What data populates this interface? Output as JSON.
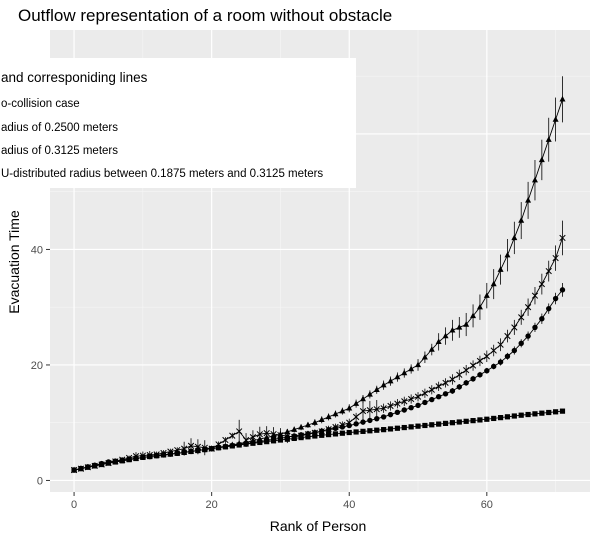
{
  "chart_data": {
    "type": "line",
    "title": "Outflow representation of a room without obstacle",
    "xlabel": "Rank of Person",
    "ylabel": "Evacuation Time",
    "xlim": [
      -3.5,
      75
    ],
    "ylim": [
      -2,
      78
    ],
    "xticks": [
      0,
      20,
      40,
      60
    ],
    "yticks": [
      0,
      20,
      40
    ],
    "grid": true,
    "legend": {
      "placement": "top-left",
      "title": "and corresponiding lines",
      "entries": [
        "o-collision case",
        "adius of 0.2500 meters",
        "adius of 0.3125 meters",
        "U-distributed radius between 0.1875 meters and 0.3125 meters"
      ]
    },
    "series": [
      {
        "marker": "square",
        "x": [
          0,
          5,
          10,
          15,
          20,
          25,
          30,
          35,
          40,
          45,
          50,
          55,
          60,
          65,
          71
        ],
        "y": [
          1.8,
          3.0,
          4.0,
          4.7,
          5.5,
          6.3,
          7.0,
          7.7,
          8.3,
          8.8,
          9.4,
          10.0,
          10.6,
          11.3,
          12.0
        ],
        "err": [
          0.3,
          0.2,
          0.2,
          0.2,
          0.2,
          0.2,
          0.2,
          0.2,
          0.2,
          0.2,
          0.2,
          0.2,
          0.2,
          0.2,
          0.3
        ]
      },
      {
        "marker": "circle",
        "x": [
          0,
          5,
          10,
          15,
          20,
          25,
          30,
          35,
          40,
          45,
          50,
          55,
          60,
          62,
          64,
          66,
          68,
          70,
          71
        ],
        "y": [
          1.8,
          3.2,
          4.0,
          4.7,
          5.5,
          6.4,
          7.3,
          8.3,
          9.5,
          11.0,
          13.0,
          15.5,
          19.0,
          20.5,
          22.5,
          25.0,
          28.0,
          31.5,
          33.0
        ],
        "err": [
          0.3,
          0.3,
          0.3,
          0.3,
          0.3,
          0.3,
          0.3,
          0.3,
          0.4,
          0.4,
          0.4,
          0.5,
          0.5,
          0.6,
          0.7,
          0.8,
          0.9,
          1.0,
          1.2
        ]
      },
      {
        "marker": "cross",
        "x": [
          0,
          5,
          9,
          12,
          16,
          17,
          20,
          24,
          25,
          27,
          28,
          32,
          36,
          40,
          42,
          45,
          50,
          55,
          60,
          62,
          64,
          66,
          68,
          70,
          71
        ],
        "y": [
          1.8,
          3.0,
          4.2,
          4.5,
          5.5,
          6.0,
          5.5,
          8.5,
          7.0,
          8.0,
          8.2,
          7.5,
          8.5,
          10.0,
          12.0,
          12.5,
          14.5,
          17.5,
          21.5,
          23.5,
          26.5,
          30.0,
          34.0,
          38.5,
          42.0
        ],
        "err": [
          0.3,
          0.4,
          0.7,
          0.5,
          1.2,
          1.3,
          0.5,
          2.0,
          1.2,
          1.3,
          1.2,
          0.6,
          0.6,
          0.7,
          1.6,
          0.8,
          0.8,
          0.9,
          1.0,
          1.1,
          1.3,
          1.5,
          1.8,
          2.2,
          3.0
        ]
      },
      {
        "marker": "triangle",
        "x": [
          0,
          5,
          10,
          15,
          20,
          25,
          30,
          35,
          40,
          45,
          50,
          53,
          55,
          57,
          59,
          61,
          63,
          65,
          67,
          69,
          71
        ],
        "y": [
          1.8,
          3.0,
          4.0,
          4.7,
          5.5,
          6.6,
          8.0,
          10.0,
          12.5,
          16.5,
          20.0,
          24.0,
          26.0,
          27.0,
          30.0,
          34.0,
          39.0,
          45.0,
          52.0,
          59.0,
          66.0
        ],
        "err": [
          0.3,
          0.3,
          0.3,
          0.3,
          0.3,
          0.4,
          0.5,
          0.6,
          0.7,
          0.8,
          1.0,
          1.5,
          1.8,
          2.0,
          2.2,
          2.6,
          2.8,
          3.2,
          3.5,
          3.8,
          4.0
        ]
      }
    ]
  }
}
